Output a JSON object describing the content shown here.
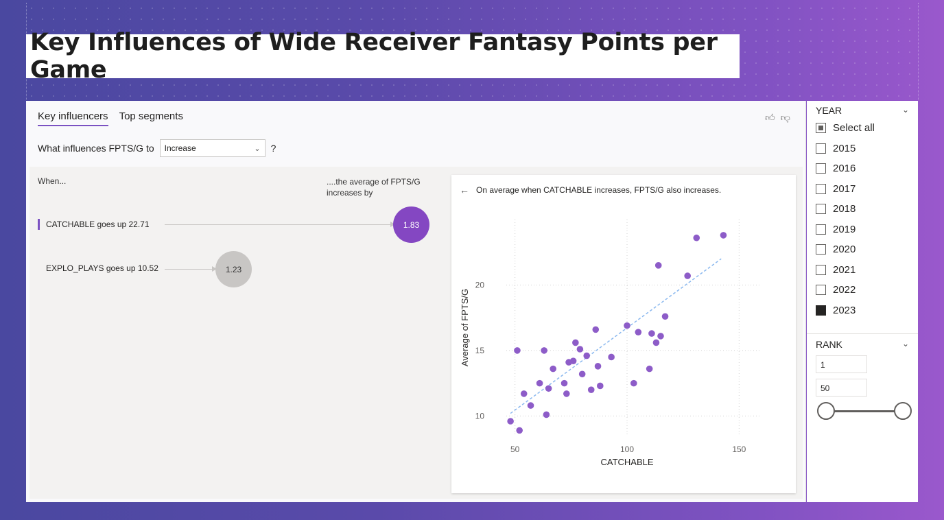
{
  "title": "Key Influences of Wide Receiver Fantasy Points per Game",
  "tabs": [
    {
      "label": "Key influencers",
      "active": true
    },
    {
      "label": "Top segments",
      "active": false
    }
  ],
  "question": {
    "prefix": "What influences FPTS/G to",
    "dropdown_value": "Increase",
    "suffix": "?"
  },
  "left": {
    "when_label": "When...",
    "avg_label": "....the average of FPTS/G increases by",
    "influencers": [
      {
        "label": "CATCHABLE goes up 22.71",
        "value": "1.83",
        "selected": true,
        "color": "#8447c2"
      },
      {
        "label": "EXPLO_PLAYS goes up 10.52",
        "value": "1.23",
        "selected": false,
        "color": "#c8c6c4"
      }
    ]
  },
  "detail": {
    "heading": "On average when CATCHABLE increases, FPTS/G also increases."
  },
  "chart_data": {
    "type": "scatter",
    "xlabel": "CATCHABLE",
    "ylabel": "Average of FPTS/G",
    "xlim": [
      40,
      160
    ],
    "ylim": [
      8.5,
      25
    ],
    "xticks": [
      50,
      100,
      150
    ],
    "yticks": [
      10,
      15,
      20
    ],
    "grid": true,
    "point_color": "#8d5cc8",
    "trend_color": "#8ab8ef",
    "trendline": [
      [
        48,
        10.2
      ],
      [
        142,
        22.0
      ]
    ],
    "points": [
      [
        48,
        9.6
      ],
      [
        51,
        15.0
      ],
      [
        52,
        8.9
      ],
      [
        54,
        11.7
      ],
      [
        57,
        10.8
      ],
      [
        61,
        12.5
      ],
      [
        63,
        15.0
      ],
      [
        64,
        10.1
      ],
      [
        65,
        12.1
      ],
      [
        67,
        13.6
      ],
      [
        72,
        12.5
      ],
      [
        73,
        11.7
      ],
      [
        74,
        14.1
      ],
      [
        76,
        14.2
      ],
      [
        77,
        15.6
      ],
      [
        79,
        15.1
      ],
      [
        80,
        13.2
      ],
      [
        82,
        14.6
      ],
      [
        84,
        12.0
      ],
      [
        86,
        16.6
      ],
      [
        87,
        13.8
      ],
      [
        88,
        12.3
      ],
      [
        93,
        14.5
      ],
      [
        100,
        16.9
      ],
      [
        103,
        12.5
      ],
      [
        105,
        16.4
      ],
      [
        110,
        13.6
      ],
      [
        111,
        16.3
      ],
      [
        113,
        15.6
      ],
      [
        114,
        21.5
      ],
      [
        115,
        16.1
      ],
      [
        117,
        17.6
      ],
      [
        127,
        20.7
      ],
      [
        131,
        23.6
      ],
      [
        143,
        23.8
      ]
    ]
  },
  "slicer_year": {
    "header": "YEAR",
    "items": [
      {
        "label": "Select all",
        "state": "partial"
      },
      {
        "label": "2015",
        "state": "unchecked"
      },
      {
        "label": "2016",
        "state": "unchecked"
      },
      {
        "label": "2017",
        "state": "unchecked"
      },
      {
        "label": "2018",
        "state": "unchecked"
      },
      {
        "label": "2019",
        "state": "unchecked"
      },
      {
        "label": "2020",
        "state": "unchecked"
      },
      {
        "label": "2021",
        "state": "unchecked"
      },
      {
        "label": "2022",
        "state": "unchecked"
      },
      {
        "label": "2023",
        "state": "checked"
      }
    ]
  },
  "slicer_rank": {
    "header": "RANK",
    "min_value": "1",
    "max_value": "50",
    "slider_range": [
      0,
      1
    ]
  }
}
